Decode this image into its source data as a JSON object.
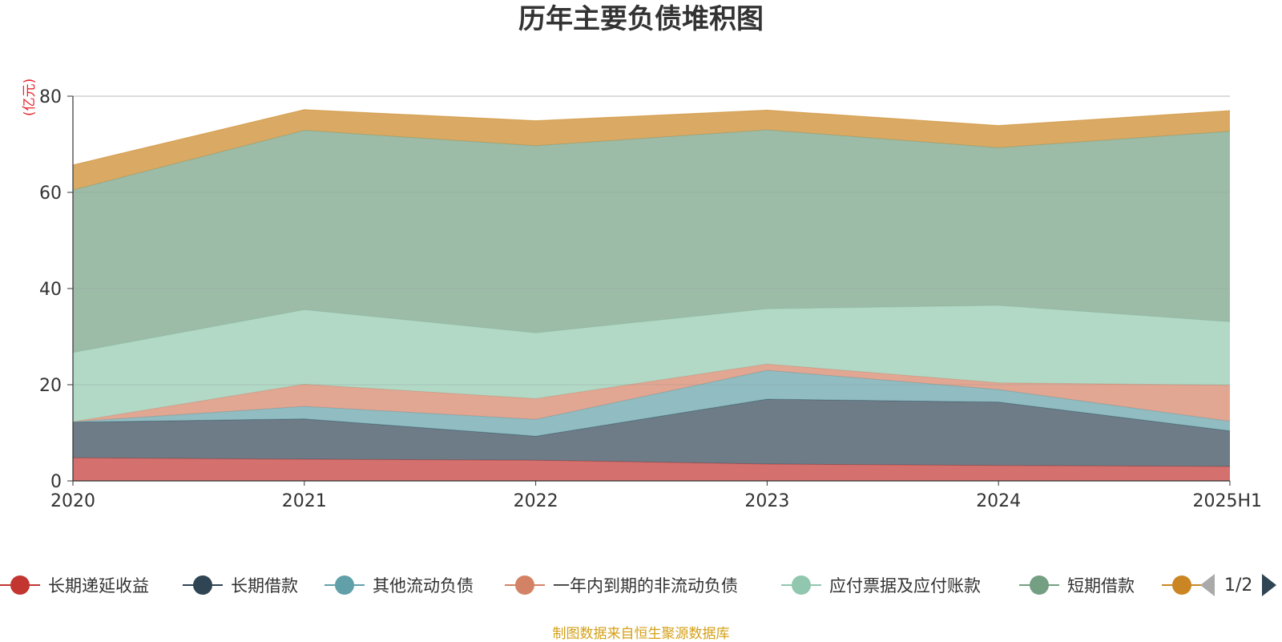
{
  "chart_data": {
    "type": "area",
    "stacked": true,
    "title": "历年主要负债堆积图",
    "unit_label": "(亿元)",
    "categories": [
      "2020",
      "2021",
      "2022",
      "2023",
      "2024",
      "2025H1"
    ],
    "ylim": [
      0,
      80
    ],
    "yticks": [
      "0",
      "20",
      "40",
      "60",
      "80"
    ],
    "grid": true,
    "legend_position": "bottom",
    "series": [
      {
        "name": "长期递延收益",
        "color": "#c23531",
        "values": [
          4.8,
          4.5,
          4.3,
          3.5,
          3.2,
          3.0
        ]
      },
      {
        "name": "长期借款",
        "color": "#2f4554",
        "values": [
          7.4,
          8.4,
          5.0,
          13.5,
          13.2,
          7.4
        ]
      },
      {
        "name": "其他流动负债",
        "color": "#61a0a8",
        "values": [
          0.1,
          2.6,
          3.5,
          6.0,
          2.6,
          2.0
        ]
      },
      {
        "name": "一年内到期的非流动负债",
        "color": "#d48265",
        "values": [
          0.0,
          4.6,
          4.3,
          1.3,
          1.4,
          7.5
        ]
      },
      {
        "name": "应付票据及应付账款",
        "color": "#91c7ae",
        "values": [
          14.4,
          15.5,
          13.7,
          11.5,
          16.1,
          13.2
        ]
      },
      {
        "name": "短期借款",
        "color": "#749f83",
        "values": [
          33.8,
          37.3,
          38.9,
          37.2,
          32.8,
          39.6
        ]
      },
      {
        "name": "",
        "color": "#ca8622",
        "values": [
          5.2,
          4.3,
          5.2,
          4.1,
          4.6,
          4.3
        ]
      }
    ]
  },
  "pager": {
    "text": "1/2"
  },
  "source": "制图数据来自恒生聚源数据库"
}
